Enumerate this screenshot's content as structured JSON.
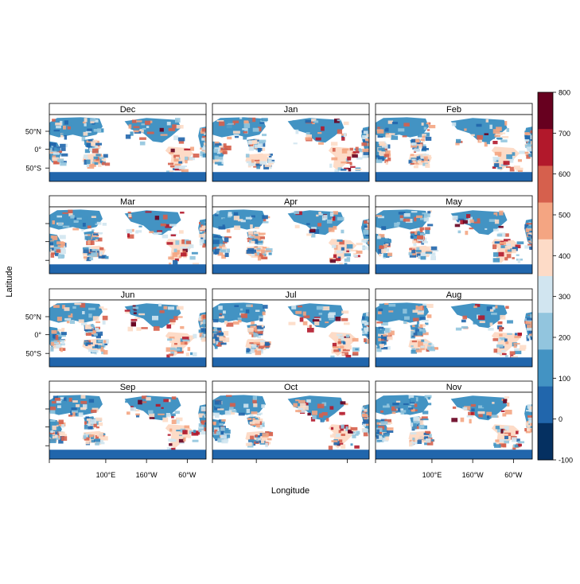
{
  "figure": {
    "xlabel": "Longitude",
    "ylabel": "Latitude"
  },
  "panels": [
    {
      "month": "Dec"
    },
    {
      "month": "Jan"
    },
    {
      "month": "Feb"
    },
    {
      "month": "Mar"
    },
    {
      "month": "Apr"
    },
    {
      "month": "May"
    },
    {
      "month": "Jun"
    },
    {
      "month": "Jul"
    },
    {
      "month": "Aug"
    },
    {
      "month": "Sep"
    },
    {
      "month": "Oct"
    },
    {
      "month": "Nov"
    }
  ],
  "axes": {
    "lat_ticks": [
      "50°N",
      "0°",
      "50°S"
    ],
    "lon_ticks": [
      "100°E",
      "160°W",
      "60°W"
    ]
  },
  "colorbar": {
    "ticks": [
      "800",
      "700",
      "600",
      "500",
      "400",
      "300",
      "200",
      "100",
      "0",
      "-100"
    ],
    "colors": [
      "#67001f",
      "#b2182b",
      "#d6604d",
      "#f4a582",
      "#fddbc7",
      "#d1e5f0",
      "#92c5de",
      "#4393c3",
      "#2166ac",
      "#053061"
    ]
  }
}
